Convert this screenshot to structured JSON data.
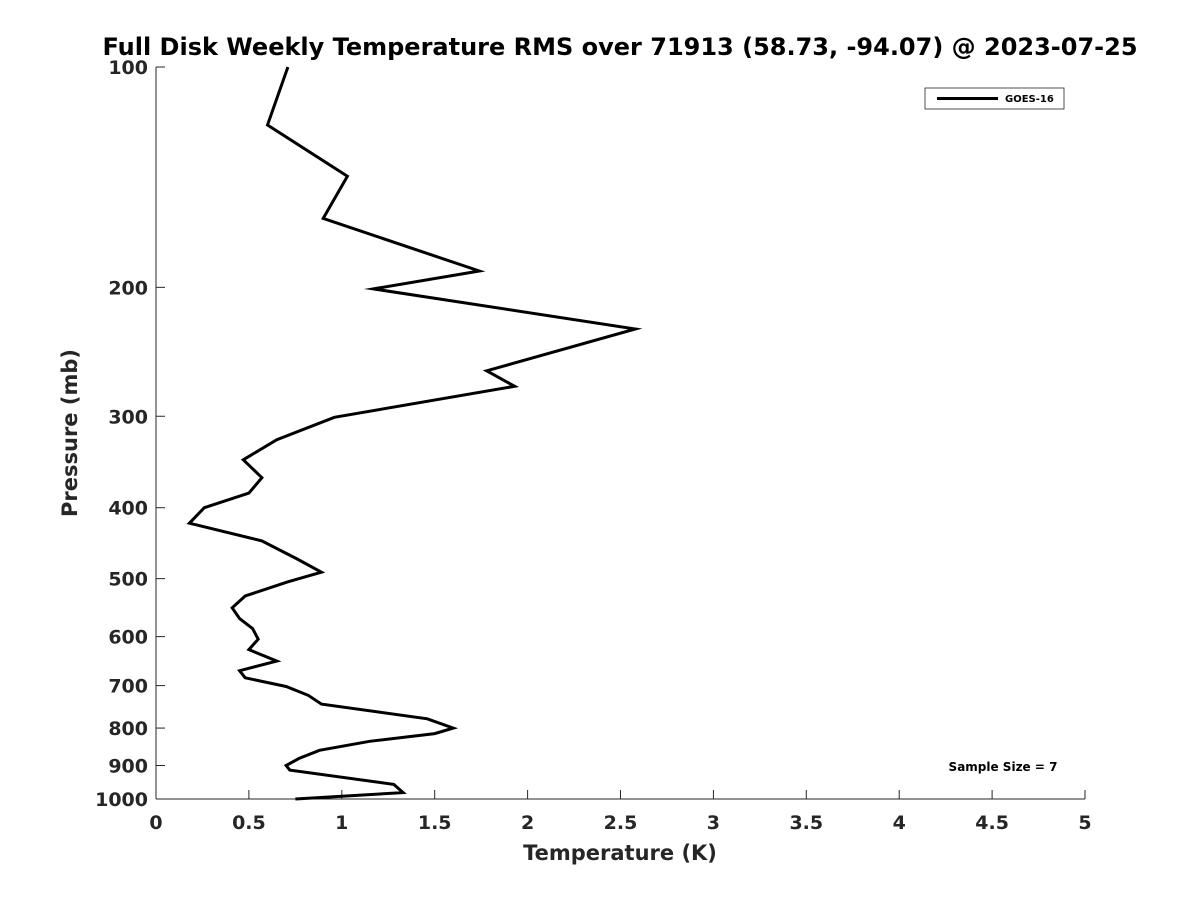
{
  "chart_data": {
    "type": "line",
    "title": "Full Disk Weekly Temperature RMS over 71913 (58.73, -94.07) @ 2023-07-25",
    "xlabel": "Temperature (K)",
    "ylabel": "Pressure (mb)",
    "xlim": [
      0,
      5
    ],
    "ylim": [
      100,
      1000
    ],
    "y_scale": "log",
    "y_reversed": true,
    "x_ticks": [
      "0",
      "0.5",
      "1",
      "1.5",
      "2",
      "2.5",
      "3",
      "3.5",
      "4",
      "4.5",
      "5"
    ],
    "y_ticks": [
      "100",
      "200",
      "300",
      "400",
      "500",
      "600",
      "700",
      "800",
      "900",
      "1000"
    ],
    "grid": false,
    "legend_position": "top-right",
    "annotation": "Sample Size = 7",
    "series": [
      {
        "name": "GOES-16",
        "color": "#000000",
        "x": [
          0.71,
          0.6,
          1.03,
          0.9,
          1.74,
          1.17,
          2.58,
          1.78,
          1.93,
          0.96,
          0.65,
          0.47,
          0.57,
          0.5,
          0.26,
          0.18,
          0.57,
          0.76,
          0.89,
          0.71,
          0.48,
          0.41,
          0.45,
          0.52,
          0.55,
          0.5,
          0.65,
          0.45,
          0.48,
          0.7,
          0.82,
          0.89,
          1.46,
          1.6,
          1.5,
          1.15,
          0.88,
          0.77,
          0.7,
          0.72,
          1.28,
          1.33,
          0.75
        ],
        "y": [
          100,
          120,
          141,
          161,
          190,
          201,
          228,
          260,
          273,
          301,
          323,
          344,
          364,
          382,
          400,
          420,
          444,
          470,
          490,
          505,
          528,
          548,
          567,
          585,
          605,
          625,
          648,
          668,
          683,
          702,
          722,
          742,
          777,
          800,
          814,
          834,
          858,
          880,
          900,
          913,
          955,
          980,
          1000
        ]
      }
    ]
  }
}
